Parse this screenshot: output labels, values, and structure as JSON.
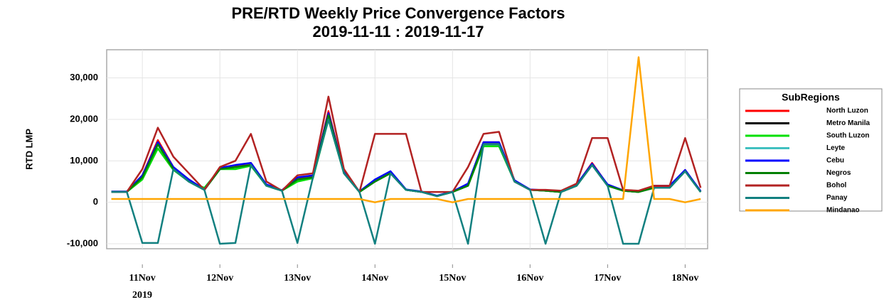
{
  "chart_data": {
    "type": "line",
    "title": "PRE/RTD Weekly Price Convergence Factors",
    "subtitle": "2019-11-11 : 2019-11-17",
    "y_label": "RTD LMP",
    "legend_title": "SubRegions",
    "legend_position": "right",
    "grid": true,
    "xlim": [
      10.54,
      18.29
    ],
    "xticks": [
      {
        "value": 11,
        "label": "11Nov"
      },
      {
        "value": 12,
        "label": "12Nov"
      },
      {
        "value": 13,
        "label": "13Nov"
      },
      {
        "value": 14,
        "label": "14Nov"
      },
      {
        "value": 15,
        "label": "15Nov"
      },
      {
        "value": 16,
        "label": "16Nov"
      },
      {
        "value": 17,
        "label": "17Nov"
      },
      {
        "value": 18,
        "label": "18Nov"
      }
    ],
    "x_year_label": "2019",
    "ylim": [
      -11200,
      36800
    ],
    "yticks": [
      {
        "value": -10000,
        "label": "-10,000"
      },
      0,
      {
        "value": 10000,
        "label": "10,000"
      },
      {
        "value": 20000,
        "label": "20,000"
      },
      {
        "value": 30000,
        "label": "30,000"
      }
    ],
    "x": [
      10.6,
      10.8,
      11.0,
      11.2,
      11.4,
      11.6,
      11.8,
      12.0,
      12.2,
      12.4,
      12.6,
      12.8,
      13.0,
      13.2,
      13.4,
      13.6,
      13.8,
      14.0,
      14.2,
      14.4,
      14.6,
      14.8,
      15.0,
      15.2,
      15.4,
      15.6,
      15.8,
      16.0,
      16.2,
      16.4,
      16.6,
      16.8,
      17.0,
      17.2,
      17.4,
      17.6,
      17.8,
      18.0,
      18.2
    ],
    "series": [
      {
        "name": "North Luzon",
        "color": "#ff0000",
        "values": [
          2500,
          2500,
          6500,
          15000,
          8500,
          5500,
          3000,
          8200,
          8800,
          9500,
          4200,
          2800,
          5800,
          6300,
          22000,
          7200,
          2500,
          5200,
          7300,
          3000,
          2500,
          1500,
          2500,
          4200,
          14500,
          14500,
          5200,
          3000,
          2800,
          2500,
          4200,
          9500,
          4200,
          2800,
          2500,
          3600,
          3600,
          7800,
          2600
        ]
      },
      {
        "name": "Metro Manila",
        "color": "#000000",
        "values": [
          2500,
          2500,
          6000,
          14000,
          8000,
          5000,
          3000,
          8000,
          8500,
          9000,
          4000,
          2800,
          5500,
          6000,
          21000,
          7000,
          2500,
          5000,
          7000,
          3000,
          2500,
          1500,
          2500,
          4000,
          14000,
          14000,
          5000,
          3000,
          2800,
          2500,
          4000,
          9000,
          4000,
          2800,
          2500,
          3500,
          3500,
          7500,
          2500
        ]
      },
      {
        "name": "South Luzon",
        "color": "#00e000",
        "values": [
          2500,
          2500,
          5500,
          13000,
          7800,
          5000,
          3500,
          8000,
          8000,
          8800,
          4000,
          2800,
          5000,
          5800,
          20000,
          7000,
          2500,
          5000,
          7000,
          3000,
          2500,
          1500,
          2500,
          4000,
          13500,
          13500,
          5000,
          3000,
          2800,
          2500,
          4000,
          9000,
          4000,
          2800,
          2500,
          3500,
          3500,
          7500,
          2500
        ]
      },
      {
        "name": "Leyte",
        "color": "#40c0c0",
        "values": [
          2500,
          2500,
          6000,
          14000,
          8000,
          5000,
          3000,
          8000,
          8500,
          9000,
          4000,
          2800,
          5500,
          6000,
          21000,
          7000,
          2500,
          5000,
          7000,
          3000,
          2500,
          1500,
          2500,
          4000,
          14000,
          14000,
          5000,
          3000,
          2800,
          2500,
          4000,
          9000,
          4000,
          2800,
          2500,
          3500,
          3500,
          7500,
          2500
        ]
      },
      {
        "name": "Cebu",
        "color": "#0000ff",
        "values": [
          2600,
          2600,
          6500,
          14500,
          8500,
          5500,
          3100,
          8300,
          9000,
          9500,
          4300,
          2900,
          6000,
          6500,
          21500,
          7300,
          2600,
          5500,
          7500,
          3100,
          2600,
          1600,
          2600,
          4500,
          14500,
          14500,
          5300,
          3100,
          2900,
          2600,
          4300,
          9300,
          4300,
          2900,
          2600,
          4000,
          4000,
          7800,
          2700
        ]
      },
      {
        "name": "Negros",
        "color": "#008000",
        "values": [
          2500,
          2500,
          6000,
          14000,
          8000,
          5000,
          3000,
          8000,
          8500,
          9000,
          4000,
          2800,
          5500,
          6000,
          21000,
          7000,
          2500,
          5000,
          7000,
          3000,
          2500,
          1500,
          2500,
          4000,
          14000,
          14000,
          5000,
          3000,
          2800,
          2500,
          4000,
          9000,
          4000,
          2800,
          2500,
          3500,
          3500,
          7500,
          2500
        ]
      },
      {
        "name": "Bohol",
        "color": "#b22222",
        "values": [
          2500,
          2500,
          8000,
          18000,
          11000,
          7000,
          3000,
          8500,
          10000,
          16500,
          5000,
          2800,
          6500,
          7000,
          25500,
          8000,
          2500,
          16500,
          16500,
          16500,
          2500,
          2500,
          2500,
          8500,
          16500,
          17000,
          5000,
          3000,
          3000,
          2800,
          4500,
          15500,
          15500,
          3000,
          2800,
          4000,
          4000,
          15500,
          3500
        ]
      },
      {
        "name": "Panay",
        "color": "#128080",
        "values": [
          2500,
          2500,
          -9800,
          -9800,
          8000,
          5000,
          3000,
          -10000,
          -9800,
          9000,
          4000,
          2800,
          -9800,
          6000,
          20000,
          7000,
          2500,
          -10000,
          7000,
          3000,
          2500,
          1500,
          2500,
          -10000,
          14000,
          14000,
          5000,
          3000,
          -10000,
          2500,
          4000,
          9000,
          4000,
          -10000,
          -10000,
          3500,
          3500,
          7500,
          2500
        ]
      },
      {
        "name": "Mindanao",
        "color": "#ffa500",
        "values": [
          800,
          800,
          800,
          800,
          800,
          800,
          800,
          800,
          800,
          800,
          800,
          800,
          800,
          800,
          800,
          800,
          800,
          0,
          800,
          800,
          800,
          800,
          0,
          800,
          800,
          800,
          800,
          800,
          800,
          800,
          800,
          800,
          800,
          800,
          35000,
          800,
          800,
          0,
          800
        ]
      }
    ]
  }
}
